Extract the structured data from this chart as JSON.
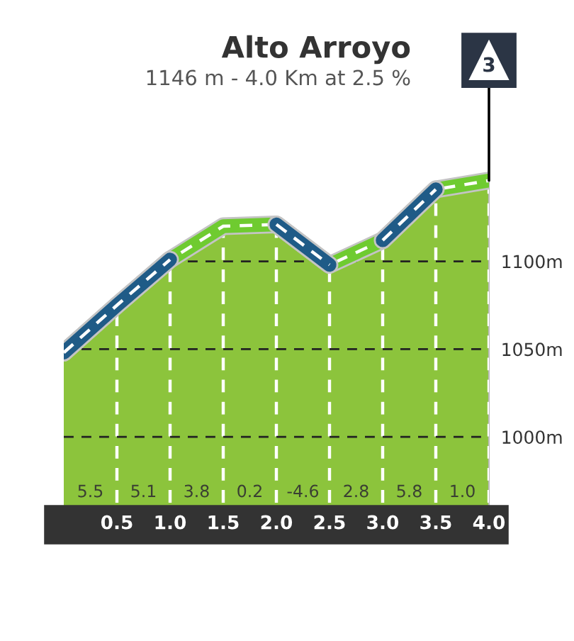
{
  "chart_data": {
    "type": "area",
    "title": "Alto Arroyo",
    "subtitle": "1146 m - 4.0 Km at 2.5 %",
    "x": [
      0,
      0.5,
      1.0,
      1.5,
      2.0,
      2.5,
      3.0,
      3.5,
      4.0
    ],
    "series": [
      {
        "color": "#8cc43c",
        "values": [
          1048,
          1075,
          1101,
          1120,
          1121,
          1098,
          1112,
          1141,
          1146
        ]
      },
      {
        "type": "line",
        "color": "#1f5b87",
        "x": [
          0,
          0.5,
          1.0
        ],
        "values": [
          1048,
          1075,
          1101
        ]
      },
      {
        "type": "line",
        "color": "#1f5b87",
        "x": [
          2.0,
          2.5
        ],
        "values": [
          1121,
          1098
        ]
      },
      {
        "type": "line",
        "color": "#1f5b87",
        "x": [
          3.0,
          3.5
        ],
        "values": [
          1112,
          1141
        ]
      }
    ],
    "xlim": [
      0,
      4.0
    ],
    "xticks": [
      0.5,
      {
        "value": 1,
        "label": "1.0"
      },
      1.5,
      {
        "value": 2,
        "label": "2.0"
      },
      2.5,
      {
        "value": 3,
        "label": "3.0"
      },
      3.5,
      {
        "value": 4,
        "label": "4.0"
      }
    ],
    "ylim": [
      950,
      1160
    ],
    "yticks": [
      {
        "value": 1000,
        "label": "1000m"
      },
      {
        "value": 1050,
        "label": "1050m"
      },
      {
        "value": 1100,
        "label": "1100m"
      }
    ],
    "grid": true,
    "annotations": [
      "5.5",
      "5.1",
      "3.8",
      "0.2",
      "-4.6",
      "2.8",
      "5.8",
      "1.0",
      {
        "text": "3",
        "x": 4.0,
        "y": 1146
      }
    ]
  }
}
